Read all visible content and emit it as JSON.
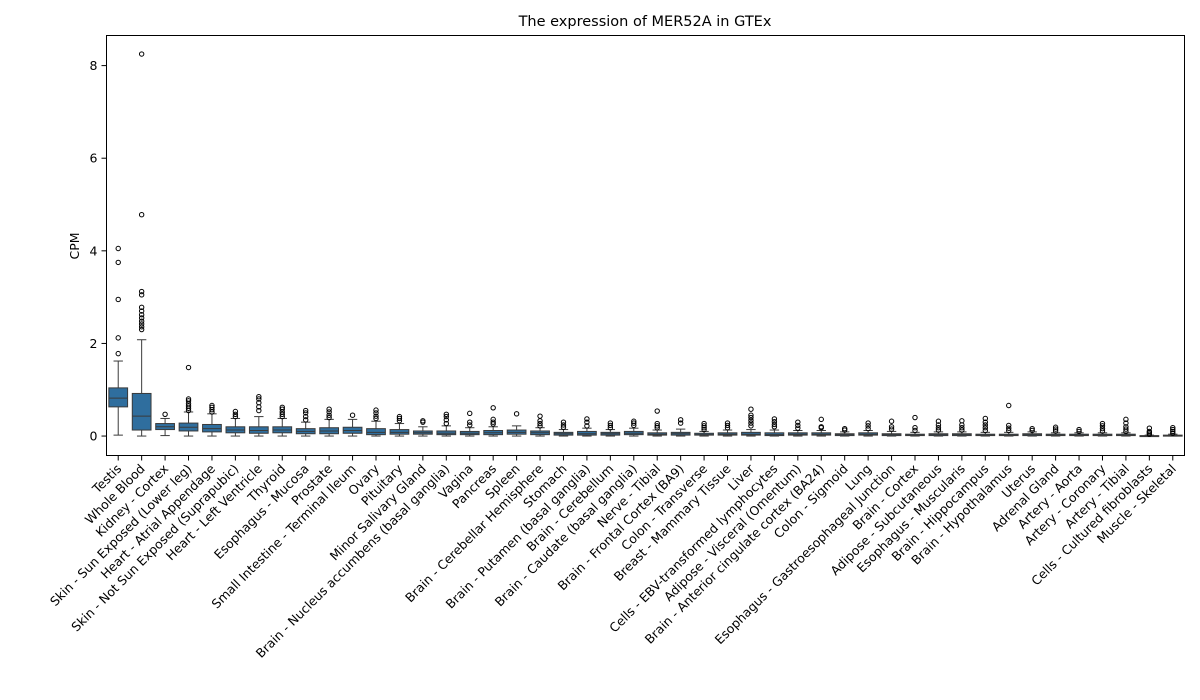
{
  "chart_data": {
    "type": "box",
    "title": "The expression of MER52A in GTEx",
    "xlabel": "",
    "ylabel": "CPM",
    "ylim": [
      -0.42,
      8.65
    ],
    "yticks": [
      0,
      2,
      4,
      6,
      8
    ],
    "grid": false,
    "box_color": "#2f6e9e",
    "categories": [
      "Testis",
      "Whole Blood",
      "Kidney - Cortex",
      "Skin - Sun Exposed (Lower leg)",
      "Heart - Atrial Appendage",
      "Skin - Not Sun Exposed (Suprapubic)",
      "Heart - Left Ventricle",
      "Thyroid",
      "Esophagus - Mucosa",
      "Prostate",
      "Small Intestine - Terminal Ileum",
      "Ovary",
      "Pituitary",
      "Minor Salivary Gland",
      "Brain - Nucleus accumbens (basal ganglia)",
      "Vagina",
      "Pancreas",
      "Spleen",
      "Brain - Cerebellar Hemisphere",
      "Stomach",
      "Brain - Putamen (basal ganglia)",
      "Brain - Cerebellum",
      "Brain - Caudate (basal ganglia)",
      "Nerve - Tibial",
      "Brain - Frontal Cortex (BA9)",
      "Colon - Transverse",
      "Breast - Mammary Tissue",
      "Liver",
      "Cells - EBV-transformed lymphocytes",
      "Adipose - Visceral (Omentum)",
      "Brain - Anterior cingulate cortex (BA24)",
      "Colon - Sigmoid",
      "Lung",
      "Esophagus - Gastroesophageal Junction",
      "Brain - Cortex",
      "Adipose - Subcutaneous",
      "Esophagus - Muscularis",
      "Brain - Hippocampus",
      "Brain - Hypothalamus",
      "Uterus",
      "Adrenal Gland",
      "Artery - Aorta",
      "Artery - Coronary",
      "Artery - Tibial",
      "Cells - Cultured fibroblasts",
      "Muscle - Skeletal"
    ],
    "boxes": [
      {
        "q1": 0.63,
        "median": 0.82,
        "q3": 1.04,
        "whislo": 0.02,
        "whishi": 1.62,
        "fliers": [
          1.78,
          2.12,
          2.95,
          3.75,
          4.05
        ]
      },
      {
        "q1": 0.13,
        "median": 0.43,
        "q3": 0.92,
        "whislo": 0.0,
        "whishi": 2.08,
        "fliers": [
          2.3,
          2.36,
          2.42,
          2.48,
          2.55,
          2.62,
          2.7,
          2.78,
          3.05,
          3.12,
          4.78,
          8.25
        ]
      },
      {
        "q1": 0.14,
        "median": 0.2,
        "q3": 0.27,
        "whislo": 0.01,
        "whishi": 0.38,
        "fliers": [
          0.47
        ]
      },
      {
        "q1": 0.11,
        "median": 0.19,
        "q3": 0.28,
        "whislo": 0.0,
        "whishi": 0.52,
        "fliers": [
          0.55,
          0.6,
          0.65,
          0.7,
          0.76,
          0.8,
          1.48
        ]
      },
      {
        "q1": 0.09,
        "median": 0.16,
        "q3": 0.25,
        "whislo": 0.0,
        "whishi": 0.48,
        "fliers": [
          0.52,
          0.57,
          0.62,
          0.66
        ]
      },
      {
        "q1": 0.07,
        "median": 0.13,
        "q3": 0.2,
        "whislo": 0.0,
        "whishi": 0.38,
        "fliers": [
          0.42,
          0.47,
          0.53
        ]
      },
      {
        "q1": 0.06,
        "median": 0.12,
        "q3": 0.2,
        "whislo": 0.0,
        "whishi": 0.42,
        "fliers": [
          0.55,
          0.63,
          0.72,
          0.8,
          0.85
        ]
      },
      {
        "q1": 0.07,
        "median": 0.13,
        "q3": 0.2,
        "whislo": 0.0,
        "whishi": 0.38,
        "fliers": [
          0.42,
          0.47,
          0.52,
          0.58,
          0.62
        ]
      },
      {
        "q1": 0.05,
        "median": 0.1,
        "q3": 0.16,
        "whislo": 0.0,
        "whishi": 0.3,
        "fliers": [
          0.35,
          0.42,
          0.5,
          0.55
        ]
      },
      {
        "q1": 0.05,
        "median": 0.11,
        "q3": 0.18,
        "whislo": 0.0,
        "whishi": 0.36,
        "fliers": [
          0.4,
          0.45,
          0.52,
          0.58
        ]
      },
      {
        "q1": 0.06,
        "median": 0.12,
        "q3": 0.19,
        "whislo": 0.0,
        "whishi": 0.36,
        "fliers": [
          0.45
        ]
      },
      {
        "q1": 0.03,
        "median": 0.08,
        "q3": 0.16,
        "whislo": 0.0,
        "whishi": 0.32,
        "fliers": [
          0.38,
          0.43,
          0.5,
          0.56
        ]
      },
      {
        "q1": 0.04,
        "median": 0.08,
        "q3": 0.14,
        "whislo": 0.0,
        "whishi": 0.27,
        "fliers": [
          0.33,
          0.38,
          0.42
        ]
      },
      {
        "q1": 0.04,
        "median": 0.07,
        "q3": 0.11,
        "whislo": 0.0,
        "whishi": 0.2,
        "fliers": [
          0.3,
          0.33
        ]
      },
      {
        "q1": 0.03,
        "median": 0.06,
        "q3": 0.11,
        "whislo": 0.0,
        "whishi": 0.22,
        "fliers": [
          0.27,
          0.35,
          0.42,
          0.47
        ]
      },
      {
        "q1": 0.03,
        "median": 0.06,
        "q3": 0.1,
        "whislo": 0.0,
        "whishi": 0.18,
        "fliers": [
          0.24,
          0.3,
          0.49
        ]
      },
      {
        "q1": 0.03,
        "median": 0.07,
        "q3": 0.12,
        "whislo": 0.0,
        "whishi": 0.2,
        "fliers": [
          0.26,
          0.3,
          0.36,
          0.61
        ]
      },
      {
        "q1": 0.04,
        "median": 0.08,
        "q3": 0.13,
        "whislo": 0.0,
        "whishi": 0.22,
        "fliers": [
          0.48
        ]
      },
      {
        "q1": 0.03,
        "median": 0.07,
        "q3": 0.11,
        "whislo": 0.0,
        "whishi": 0.18,
        "fliers": [
          0.22,
          0.27,
          0.33,
          0.43
        ]
      },
      {
        "q1": 0.02,
        "median": 0.05,
        "q3": 0.08,
        "whislo": 0.0,
        "whishi": 0.14,
        "fliers": [
          0.19,
          0.24,
          0.3
        ]
      },
      {
        "q1": 0.02,
        "median": 0.05,
        "q3": 0.1,
        "whislo": 0.0,
        "whishi": 0.17,
        "fliers": [
          0.22,
          0.3,
          0.37
        ]
      },
      {
        "q1": 0.02,
        "median": 0.05,
        "q3": 0.08,
        "whislo": 0.0,
        "whishi": 0.14,
        "fliers": [
          0.18,
          0.23,
          0.28
        ]
      },
      {
        "q1": 0.03,
        "median": 0.06,
        "q3": 0.1,
        "whislo": 0.0,
        "whishi": 0.17,
        "fliers": [
          0.23,
          0.28,
          0.32
        ]
      },
      {
        "q1": 0.02,
        "median": 0.04,
        "q3": 0.07,
        "whislo": 0.0,
        "whishi": 0.13,
        "fliers": [
          0.18,
          0.22,
          0.27,
          0.54
        ]
      },
      {
        "q1": 0.02,
        "median": 0.05,
        "q3": 0.08,
        "whislo": 0.0,
        "whishi": 0.15,
        "fliers": [
          0.28,
          0.35
        ]
      },
      {
        "q1": 0.02,
        "median": 0.03,
        "q3": 0.06,
        "whislo": 0.0,
        "whishi": 0.1,
        "fliers": [
          0.14,
          0.18,
          0.22,
          0.27
        ]
      },
      {
        "q1": 0.02,
        "median": 0.04,
        "q3": 0.07,
        "whislo": 0.0,
        "whishi": 0.13,
        "fliers": [
          0.18,
          0.23,
          0.28
        ]
      },
      {
        "q1": 0.02,
        "median": 0.04,
        "q3": 0.08,
        "whislo": 0.0,
        "whishi": 0.14,
        "fliers": [
          0.22,
          0.28,
          0.34,
          0.4,
          0.45,
          0.58
        ]
      },
      {
        "q1": 0.01,
        "median": 0.03,
        "q3": 0.07,
        "whislo": 0.0,
        "whishi": 0.13,
        "fliers": [
          0.2,
          0.25,
          0.31,
          0.37
        ]
      },
      {
        "q1": 0.02,
        "median": 0.04,
        "q3": 0.07,
        "whislo": 0.0,
        "whishi": 0.12,
        "fliers": [
          0.17,
          0.23,
          0.3
        ]
      },
      {
        "q1": 0.02,
        "median": 0.04,
        "q3": 0.07,
        "whislo": 0.0,
        "whishi": 0.12,
        "fliers": [
          0.18,
          0.2,
          0.36
        ]
      },
      {
        "q1": 0.01,
        "median": 0.03,
        "q3": 0.05,
        "whislo": 0.0,
        "whishi": 0.09,
        "fliers": [
          0.13,
          0.16
        ]
      },
      {
        "q1": 0.02,
        "median": 0.04,
        "q3": 0.07,
        "whislo": 0.0,
        "whishi": 0.12,
        "fliers": [
          0.16,
          0.22,
          0.28
        ]
      },
      {
        "q1": 0.01,
        "median": 0.03,
        "q3": 0.05,
        "whislo": 0.0,
        "whishi": 0.1,
        "fliers": [
          0.15,
          0.2,
          0.32
        ]
      },
      {
        "q1": 0.01,
        "median": 0.02,
        "q3": 0.04,
        "whislo": 0.0,
        "whishi": 0.08,
        "fliers": [
          0.12,
          0.18,
          0.4
        ]
      },
      {
        "q1": 0.01,
        "median": 0.03,
        "q3": 0.05,
        "whislo": 0.0,
        "whishi": 0.09,
        "fliers": [
          0.13,
          0.18,
          0.24,
          0.32
        ]
      },
      {
        "q1": 0.01,
        "median": 0.03,
        "q3": 0.05,
        "whislo": 0.0,
        "whishi": 0.09,
        "fliers": [
          0.13,
          0.18,
          0.24,
          0.33
        ]
      },
      {
        "q1": 0.01,
        "median": 0.02,
        "q3": 0.04,
        "whislo": 0.0,
        "whishi": 0.08,
        "fliers": [
          0.12,
          0.18,
          0.24,
          0.3,
          0.38
        ]
      },
      {
        "q1": 0.01,
        "median": 0.02,
        "q3": 0.04,
        "whislo": 0.0,
        "whishi": 0.08,
        "fliers": [
          0.12,
          0.17,
          0.23,
          0.66
        ]
      },
      {
        "q1": 0.01,
        "median": 0.03,
        "q3": 0.05,
        "whislo": 0.0,
        "whishi": 0.09,
        "fliers": [
          0.12,
          0.16
        ]
      },
      {
        "q1": 0.01,
        "median": 0.02,
        "q3": 0.04,
        "whislo": 0.0,
        "whishi": 0.07,
        "fliers": [
          0.11,
          0.15,
          0.19
        ]
      },
      {
        "q1": 0.01,
        "median": 0.02,
        "q3": 0.04,
        "whislo": 0.0,
        "whishi": 0.07,
        "fliers": [
          0.1,
          0.14
        ]
      },
      {
        "q1": 0.01,
        "median": 0.02,
        "q3": 0.04,
        "whislo": 0.0,
        "whishi": 0.07,
        "fliers": [
          0.11,
          0.16,
          0.22,
          0.27
        ]
      },
      {
        "q1": 0.01,
        "median": 0.02,
        "q3": 0.04,
        "whislo": 0.0,
        "whishi": 0.07,
        "fliers": [
          0.1,
          0.15,
          0.2,
          0.28,
          0.36
        ]
      },
      {
        "q1": 0.0,
        "median": 0.0,
        "q3": 0.01,
        "whislo": 0.0,
        "whishi": 0.02,
        "fliers": [
          0.04,
          0.07,
          0.1,
          0.17
        ]
      },
      {
        "q1": 0.0,
        "median": 0.01,
        "q3": 0.02,
        "whislo": 0.0,
        "whishi": 0.04,
        "fliers": [
          0.06,
          0.1,
          0.14,
          0.18
        ]
      }
    ]
  }
}
